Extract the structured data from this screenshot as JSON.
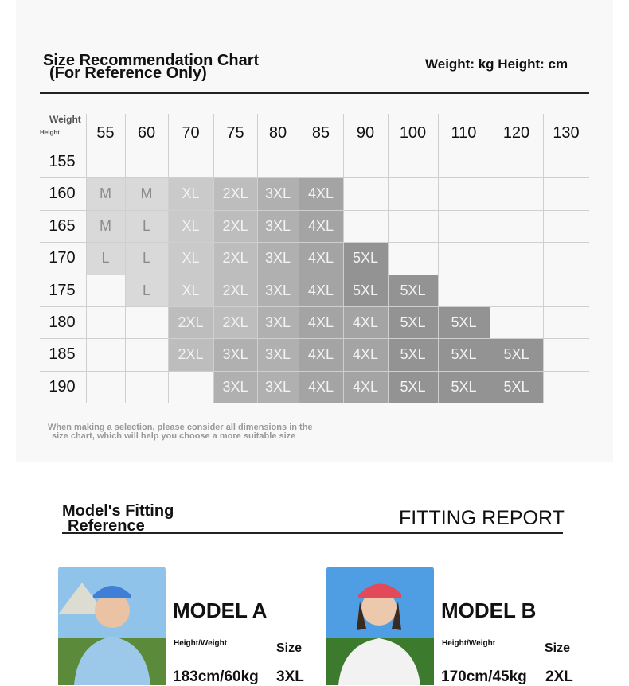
{
  "header": {
    "title": "Size Recommendation Chart",
    "subtitle": "(For Reference Only)",
    "units": "Weight: kg Height: cm"
  },
  "table": {
    "corner_top": "Weight",
    "corner_bottom": "Height",
    "weights": [
      55,
      60,
      70,
      75,
      80,
      85,
      90,
      100,
      110,
      120,
      130
    ],
    "rows": [
      {
        "height": 155,
        "cells": [
          null,
          null,
          null,
          null,
          null,
          null,
          null,
          null,
          null,
          null,
          null
        ]
      },
      {
        "height": 160,
        "cells": [
          {
            "text": "M",
            "color": "#d9d9d9"
          },
          {
            "text": "M",
            "color": "#d9d9d9"
          },
          {
            "text": "XL",
            "color": "#cacaca"
          },
          {
            "text": "2XL",
            "color": "#bdbdbd"
          },
          {
            "text": "3XL",
            "color": "#b0b0b0"
          },
          {
            "text": "4XL",
            "color": "#a4a4a4"
          },
          null,
          null,
          null,
          null,
          null
        ]
      },
      {
        "height": 165,
        "cells": [
          {
            "text": "M",
            "color": "#d9d9d9"
          },
          {
            "text": "L",
            "color": "#d9d9d9"
          },
          {
            "text": "XL",
            "color": "#cacaca"
          },
          {
            "text": "2XL",
            "color": "#bdbdbd"
          },
          {
            "text": "3XL",
            "color": "#b0b0b0"
          },
          {
            "text": "4XL",
            "color": "#a4a4a4"
          },
          null,
          null,
          null,
          null,
          null
        ]
      },
      {
        "height": 170,
        "cells": [
          {
            "text": "L",
            "color": "#d9d9d9"
          },
          {
            "text": "L",
            "color": "#d9d9d9"
          },
          {
            "text": "XL",
            "color": "#cacaca"
          },
          {
            "text": "2XL",
            "color": "#bdbdbd"
          },
          {
            "text": "3XL",
            "color": "#b0b0b0"
          },
          {
            "text": "4XL",
            "color": "#a4a4a4"
          },
          {
            "text": "5XL",
            "color": "#939393"
          },
          null,
          null,
          null,
          null
        ]
      },
      {
        "height": 175,
        "cells": [
          null,
          {
            "text": "L",
            "color": "#d9d9d9"
          },
          {
            "text": "XL",
            "color": "#cacaca"
          },
          {
            "text": "2XL",
            "color": "#bdbdbd"
          },
          {
            "text": "3XL",
            "color": "#b0b0b0"
          },
          {
            "text": "4XL",
            "color": "#a4a4a4"
          },
          {
            "text": "5XL",
            "color": "#939393"
          },
          {
            "text": "5XL",
            "color": "#939393"
          },
          null,
          null,
          null
        ]
      },
      {
        "height": 180,
        "cells": [
          null,
          null,
          {
            "text": "2XL",
            "color": "#bdbdbd"
          },
          {
            "text": "2XL",
            "color": "#bdbdbd"
          },
          {
            "text": "3XL",
            "color": "#b0b0b0"
          },
          {
            "text": "4XL",
            "color": "#a4a4a4"
          },
          {
            "text": "4XL",
            "color": "#a4a4a4"
          },
          {
            "text": "5XL",
            "color": "#939393"
          },
          {
            "text": "5XL",
            "color": "#939393"
          },
          null,
          null
        ]
      },
      {
        "height": 185,
        "cells": [
          null,
          null,
          {
            "text": "2XL",
            "color": "#bdbdbd"
          },
          {
            "text": "3XL",
            "color": "#b0b0b0"
          },
          {
            "text": "3XL",
            "color": "#b0b0b0"
          },
          {
            "text": "4XL",
            "color": "#a4a4a4"
          },
          {
            "text": "4XL",
            "color": "#a4a4a4"
          },
          {
            "text": "5XL",
            "color": "#939393"
          },
          {
            "text": "5XL",
            "color": "#939393"
          },
          {
            "text": "5XL",
            "color": "#939393"
          },
          null
        ]
      },
      {
        "height": 190,
        "cells": [
          null,
          null,
          null,
          {
            "text": "3XL",
            "color": "#b0b0b0"
          },
          {
            "text": "3XL",
            "color": "#b0b0b0"
          },
          {
            "text": "4XL",
            "color": "#a4a4a4"
          },
          {
            "text": "4XL",
            "color": "#a4a4a4"
          },
          {
            "text": "5XL",
            "color": "#939393"
          },
          {
            "text": "5XL",
            "color": "#939393"
          },
          {
            "text": "5XL",
            "color": "#939393"
          },
          null
        ]
      }
    ]
  },
  "note": [
    "When making a selection, please consider all dimensions in the",
    "size chart, which will help you choose a more suitable size"
  ],
  "fitting": {
    "title": [
      "Model's Fitting",
      "Reference"
    ],
    "report": "FITTING  REPORT",
    "models": [
      {
        "name": "MODEL  A",
        "hw_label": "Height/Weight",
        "size_label": "Size",
        "hw": "183cm/60kg",
        "size": "3XL"
      },
      {
        "name": "MODEL  B",
        "hw_label": "Height/Weight",
        "size_label": "Size",
        "hw": "170cm/45kg",
        "size": "2XL"
      }
    ]
  }
}
